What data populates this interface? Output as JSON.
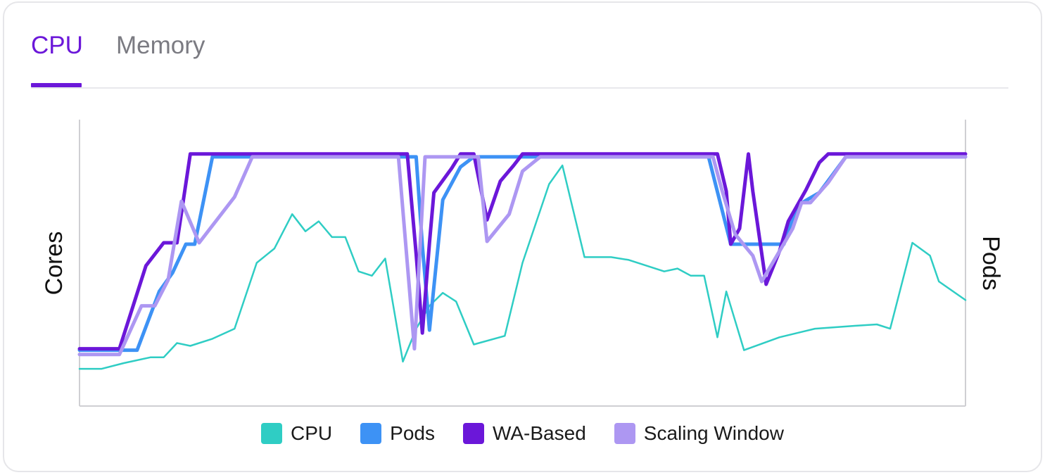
{
  "tabs": [
    {
      "label": "CPU",
      "active": true
    },
    {
      "label": "Memory",
      "active": false
    }
  ],
  "accent_color": "#6b17d9",
  "chart_data": {
    "type": "line",
    "ylabel_left": "Cores",
    "ylabel_right": "Pods",
    "grid": false,
    "legend_position": "bottom-center",
    "x_range": [
      0,
      100
    ],
    "y_range": [
      0,
      100
    ],
    "series": [
      {
        "name": "CPU",
        "color": "#2fcdc4",
        "width": 2.5,
        "points": [
          [
            0,
            13
          ],
          [
            2.5,
            13
          ],
          [
            5,
            15
          ],
          [
            8,
            17
          ],
          [
            9.5,
            17
          ],
          [
            11,
            22
          ],
          [
            12.5,
            21
          ],
          [
            15,
            23.5
          ],
          [
            17.5,
            27
          ],
          [
            20,
            50
          ],
          [
            22,
            55
          ],
          [
            24,
            67
          ],
          [
            25.5,
            61
          ],
          [
            27,
            64.5
          ],
          [
            28.5,
            59
          ],
          [
            30,
            59
          ],
          [
            31.5,
            47
          ],
          [
            33,
            45.5
          ],
          [
            34.5,
            51.5
          ],
          [
            36.5,
            15.5
          ],
          [
            38,
            27
          ],
          [
            39.5,
            35
          ],
          [
            41,
            39.5
          ],
          [
            42.5,
            36.5
          ],
          [
            44.5,
            21.5
          ],
          [
            48,
            24.5
          ],
          [
            50,
            50
          ],
          [
            53,
            77.5
          ],
          [
            54.5,
            84
          ],
          [
            57,
            52
          ],
          [
            60,
            52
          ],
          [
            62,
            51
          ],
          [
            66,
            47
          ],
          [
            67.5,
            48
          ],
          [
            69,
            45.5
          ],
          [
            70.5,
            45.5
          ],
          [
            72,
            24
          ],
          [
            73,
            40
          ],
          [
            75,
            19.5
          ],
          [
            79,
            24
          ],
          [
            83,
            27
          ],
          [
            87.5,
            28
          ],
          [
            90,
            28.5
          ],
          [
            91.5,
            27
          ],
          [
            94,
            57
          ],
          [
            96,
            52.5
          ],
          [
            97,
            43.5
          ],
          [
            100,
            37
          ]
        ]
      },
      {
        "name": "Pods",
        "color": "#3d92f5",
        "width": 5,
        "points": [
          [
            0,
            19.5
          ],
          [
            6.5,
            19.5
          ],
          [
            9,
            40
          ],
          [
            10.5,
            46.5
          ],
          [
            12,
            56.5
          ],
          [
            13,
            56.5
          ],
          [
            15,
            87
          ],
          [
            19,
            87
          ],
          [
            35,
            87
          ],
          [
            38,
            87
          ],
          [
            38.7,
            56
          ],
          [
            39.5,
            26.5
          ],
          [
            41,
            72
          ],
          [
            43,
            83.5
          ],
          [
            44.5,
            87
          ],
          [
            50,
            87
          ],
          [
            71,
            87
          ],
          [
            73.5,
            56.5
          ],
          [
            76,
            56.5
          ],
          [
            79.5,
            56.5
          ],
          [
            81,
            70
          ],
          [
            83.5,
            74.5
          ],
          [
            86.5,
            87
          ],
          [
            100,
            87
          ]
        ]
      },
      {
        "name": "WA-Based",
        "color": "#6b17d9",
        "width": 5,
        "points": [
          [
            0,
            20
          ],
          [
            4.5,
            20
          ],
          [
            7.5,
            49
          ],
          [
            9.5,
            57
          ],
          [
            11,
            57
          ],
          [
            12.5,
            88
          ],
          [
            20,
            88
          ],
          [
            37,
            88
          ],
          [
            38,
            53
          ],
          [
            38.7,
            25.5
          ],
          [
            39.5,
            57
          ],
          [
            40,
            74.5
          ],
          [
            42,
            83
          ],
          [
            43,
            88
          ],
          [
            44.5,
            88
          ],
          [
            46,
            65
          ],
          [
            47.5,
            78.5
          ],
          [
            49,
            84
          ],
          [
            50,
            88
          ],
          [
            60,
            88
          ],
          [
            72,
            88
          ],
          [
            73,
            75
          ],
          [
            73.5,
            56.5
          ],
          [
            74.5,
            62
          ],
          [
            75.5,
            88
          ],
          [
            76,
            75
          ],
          [
            77.5,
            42.5
          ],
          [
            79,
            54
          ],
          [
            80,
            64.5
          ],
          [
            82,
            75.5
          ],
          [
            83.5,
            85
          ],
          [
            84.5,
            88
          ],
          [
            90,
            88
          ],
          [
            100,
            88
          ]
        ]
      },
      {
        "name": "Scaling Window",
        "color": "#ad97f2",
        "width": 5,
        "points": [
          [
            0,
            18
          ],
          [
            4.5,
            18
          ],
          [
            7,
            35
          ],
          [
            8.5,
            35
          ],
          [
            10,
            44
          ],
          [
            11.5,
            71.5
          ],
          [
            13.5,
            57
          ],
          [
            17.5,
            73
          ],
          [
            19.5,
            87
          ],
          [
            30,
            87
          ],
          [
            36,
            87
          ],
          [
            37.8,
            20
          ],
          [
            39,
            87
          ],
          [
            41,
            87
          ],
          [
            44,
            87
          ],
          [
            45,
            87
          ],
          [
            46,
            57.5
          ],
          [
            48.5,
            67
          ],
          [
            50,
            82
          ],
          [
            52,
            87
          ],
          [
            60,
            87
          ],
          [
            71.5,
            87
          ],
          [
            72.5,
            75.5
          ],
          [
            74,
            60
          ],
          [
            76,
            52.5
          ],
          [
            77,
            43.5
          ],
          [
            79,
            54
          ],
          [
            80.5,
            62
          ],
          [
            81.5,
            71
          ],
          [
            82.5,
            71
          ],
          [
            84.5,
            78
          ],
          [
            86.5,
            87
          ],
          [
            100,
            87
          ]
        ]
      }
    ]
  }
}
